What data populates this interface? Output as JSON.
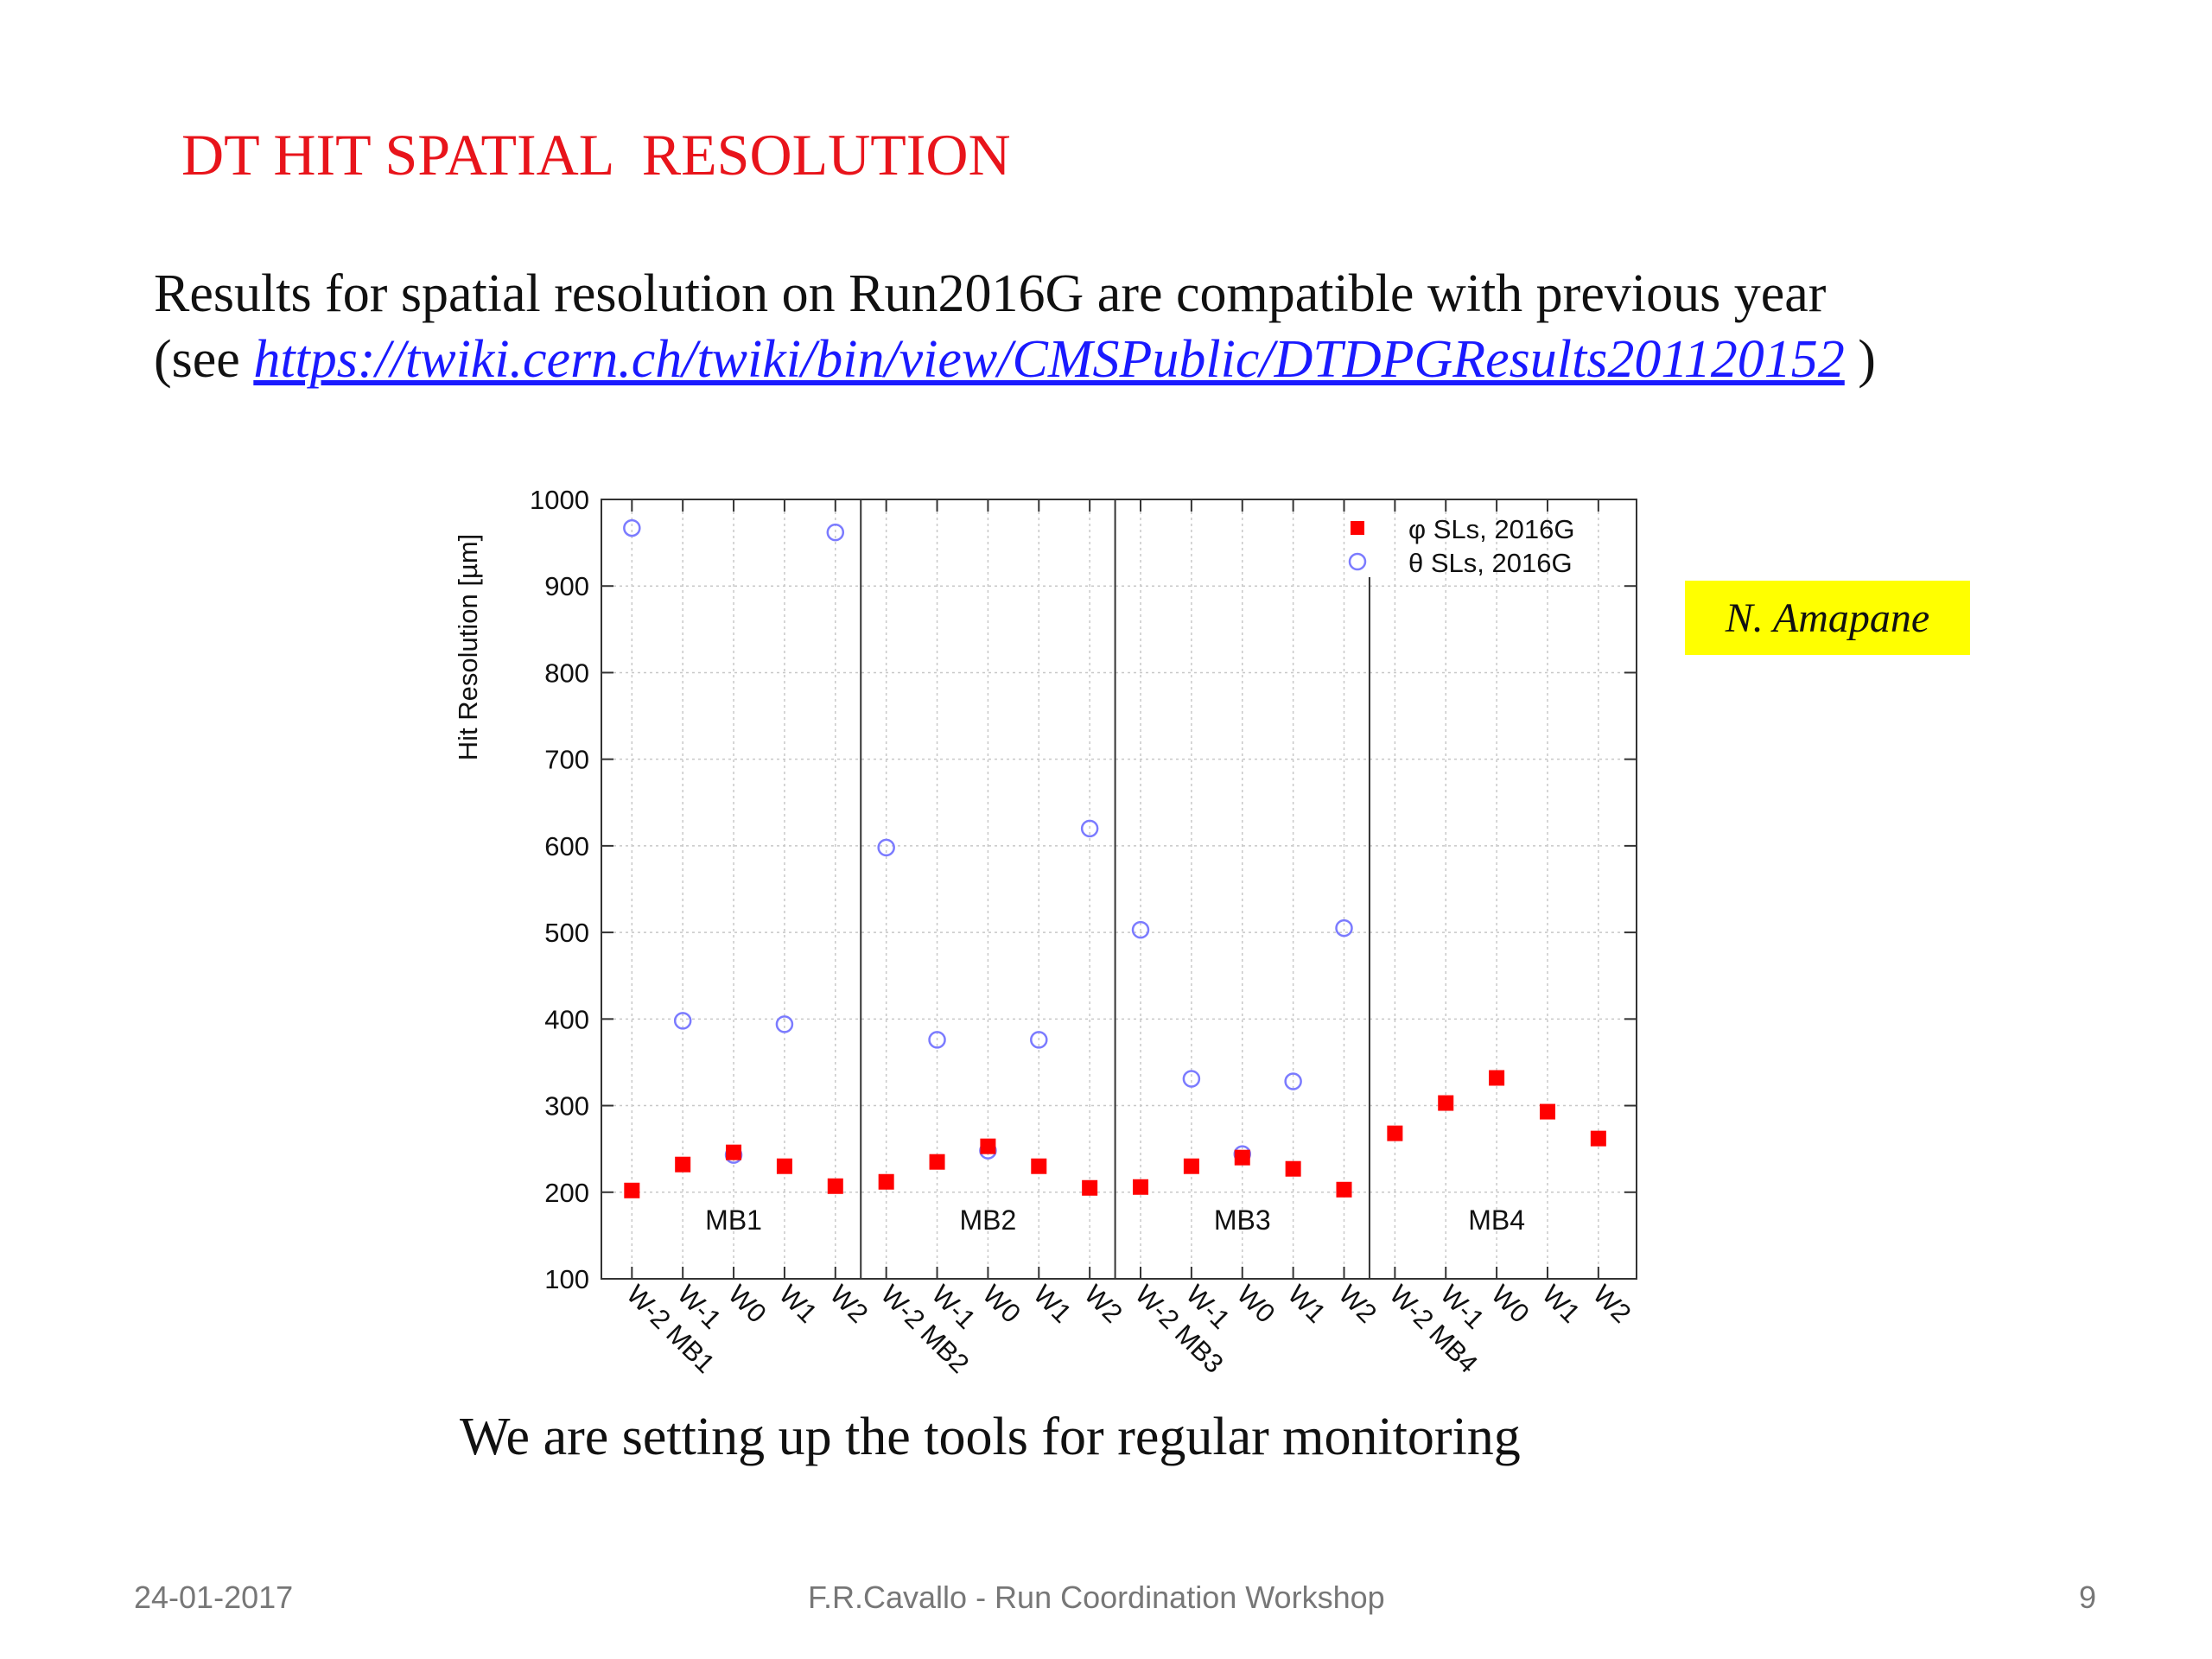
{
  "slide": {
    "title": "DT HIT SPATIAL  RESOLUTION",
    "body_line1": "Results for spatial resolution on Run2016G are compatible with previous year",
    "body_line2_prefix": "(see ",
    "body_link": "https://twiki.cern.ch/twiki/bin/view/CMSPublic/DTDPGResults201120152",
    "body_line2_suffix": " )",
    "note": "N. Amapane",
    "caption": "We are setting up the tools for regular monitoring",
    "footer_date": "24-01-2017",
    "footer_center": "F.R.Cavallo - Run Coordination Workshop",
    "footer_page": "9"
  },
  "colors": {
    "title": "#e8141b",
    "link": "#1a1aff",
    "note_bg": "#ffff00",
    "phi": "#ff0000",
    "theta": "#7b7bff"
  },
  "chart_data": {
    "type": "scatter",
    "ylabel": "Hit Resolution [µm]",
    "ylim": [
      100,
      1000
    ],
    "yticks": [
      100,
      200,
      300,
      400,
      500,
      600,
      700,
      800,
      900,
      1000
    ],
    "grid": true,
    "legend_position": "top-right",
    "categories": [
      "W-2 MB1",
      "W-1",
      "W0",
      "W1",
      "W2",
      "W-2 MB2",
      "W-1",
      "W0",
      "W1",
      "W2",
      "W-2 MB3",
      "W-1",
      "W0",
      "W1",
      "W2",
      "W-2 MB4",
      "W-1",
      "W0",
      "W1",
      "W2"
    ],
    "stations": [
      "MB1",
      "MB2",
      "MB3",
      "MB4"
    ],
    "series": [
      {
        "name": "φ SLs, 2016G",
        "marker": "filled-square",
        "values": [
          202,
          232,
          246,
          230,
          207,
          212,
          235,
          253,
          230,
          205,
          206,
          230,
          240,
          227,
          203,
          268,
          303,
          332,
          293,
          262
        ]
      },
      {
        "name": "θ SLs, 2016G",
        "marker": "open-circle",
        "values": [
          967,
          398,
          243,
          394,
          962,
          598,
          376,
          248,
          376,
          620,
          503,
          331,
          244,
          328,
          505,
          null,
          null,
          null,
          null,
          null
        ]
      }
    ]
  }
}
